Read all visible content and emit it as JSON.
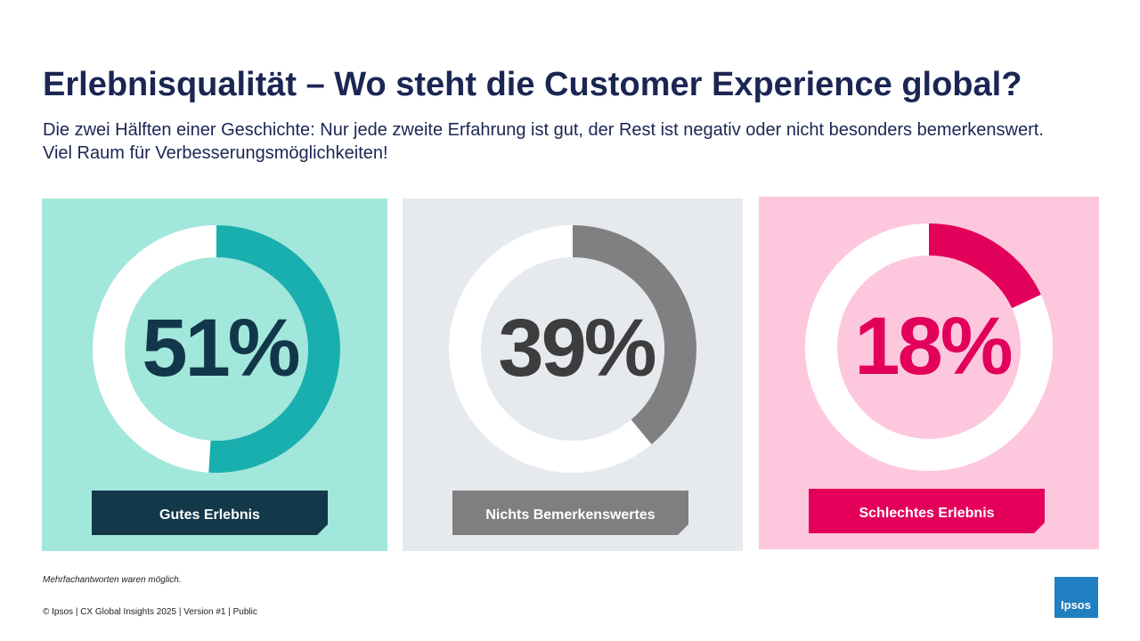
{
  "title": "Erlebnisqualität – Wo steht die Customer Experience global?",
  "subtitle": "Die zwei Hälften einer Geschichte: Nur jede zweite Erfahrung ist gut, der Rest ist negativ oder nicht besonders bemerkenswert. Viel Raum für Verbesserungsmöglichkeiten!",
  "footnote": "Mehrfachantworten waren möglich.",
  "footer": "© Ipsos | CX Global Insights 2025 | Version #1 | Public",
  "logo": "Ipsos",
  "chart_data": [
    {
      "type": "donut",
      "title": "Gutes Erlebnis",
      "values": [
        51
      ],
      "value_labels": [
        "51%"
      ],
      "color": "#1aafaf",
      "track_color": "#ffffff",
      "background": "#a2e7db",
      "label_color": "#12364a",
      "box_color": "#12384a"
    },
    {
      "type": "donut",
      "title": "Nichts Bemerkenswertes",
      "values": [
        39
      ],
      "value_labels": [
        "39%"
      ],
      "color": "#808080",
      "track_color": "#ffffff",
      "background": "#e6e9ee",
      "label_color": "#3d3d3d",
      "box_color": "#7f7f7f"
    },
    {
      "type": "donut",
      "title": "Schlechtes Erlebnis",
      "values": [
        18
      ],
      "value_labels": [
        "18%"
      ],
      "color": "#e2005a",
      "track_color": "#ffffff",
      "background": "#fdc8dd",
      "label_color": "#e2005a",
      "box_color": "#e4005a"
    }
  ]
}
